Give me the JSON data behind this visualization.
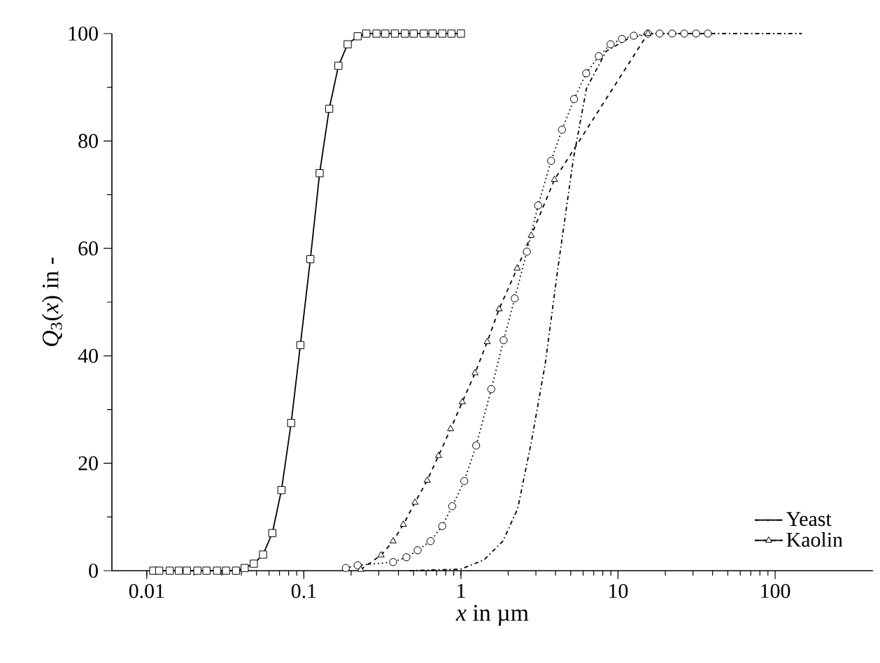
{
  "chart_data": {
    "type": "line",
    "xlabel": "*x* in µm",
    "ylabel": "*Q*$_{3}$(*x*) in -",
    "log": "x",
    "xlim": [
      0.006,
      420
    ],
    "ylim": [
      0,
      100
    ],
    "xticks": [
      0.01,
      0.1,
      1,
      10,
      100
    ],
    "yticks": [
      0,
      20,
      40,
      60,
      80,
      100
    ],
    "grid": false,
    "legend": "bottom right",
    "series": [
      {
        "color": "#000000",
        "marker": "square",
        "line_style": "solid",
        "x": [
          0.011,
          0.012,
          0.014,
          0.016,
          0.018,
          0.021,
          0.024,
          0.028,
          0.032,
          0.037,
          0.042,
          0.048,
          0.055,
          0.063,
          0.072,
          0.083,
          0.095,
          0.11,
          0.126,
          0.145,
          0.166,
          0.19,
          0.22,
          0.25,
          0.29,
          0.33,
          0.38,
          0.44,
          0.5,
          0.58,
          0.66,
          0.76,
          0.87,
          1.0
        ],
        "values": [
          0,
          0,
          0,
          0,
          0,
          0,
          0,
          0,
          0,
          0,
          0.5,
          1.3,
          3,
          7,
          15,
          27.5,
          42,
          58,
          74,
          86,
          94,
          98,
          99.5,
          100,
          100,
          100,
          100,
          100,
          100,
          100,
          100,
          100,
          100,
          100
        ]
      },
      {
        "color": "#000000",
        "marker": "circle",
        "line_style": "dotted",
        "x": [
          0.185,
          0.22,
          0.37,
          0.45,
          0.53,
          0.64,
          0.76,
          0.88,
          1.05,
          1.25,
          1.56,
          1.87,
          2.2,
          2.63,
          3.1,
          3.75,
          4.4,
          5.25,
          6.27,
          7.55,
          8.97,
          10.6,
          12.6,
          15.5,
          18.4,
          22.1,
          26.4,
          31.4,
          37.3
        ],
        "values": [
          0.5,
          1,
          1.6,
          2.5,
          3.8,
          5.5,
          8.3,
          12,
          16.7,
          23.3,
          33.8,
          42.9,
          50.7,
          59.4,
          68,
          76.3,
          82.1,
          87.8,
          92.6,
          95.8,
          98,
          99,
          99.6,
          100,
          100,
          100,
          100,
          100,
          100
        ]
      },
      {
        "name": "Yeast",
        "color": "#000000",
        "marker": "none",
        "line_style": "dashdot",
        "x": [
          0.47,
          1.0,
          1.4,
          1.85,
          2.3,
          2.8,
          3.44,
          4.2,
          5.2,
          6.3,
          8.4,
          12,
          17,
          148
        ],
        "values": [
          0,
          0.3,
          2,
          5.5,
          11.6,
          23.8,
          38.5,
          57.6,
          76.7,
          89.8,
          96.7,
          99.3,
          100,
          100
        ]
      },
      {
        "name": "Kaolin",
        "color": "#000000",
        "marker": "triangle",
        "line_style": "dashed",
        "x": [
          0.23,
          0.31,
          0.37,
          0.43,
          0.51,
          0.61,
          0.72,
          0.86,
          1.02,
          1.23,
          1.47,
          1.75,
          2.28,
          2.8,
          3.94,
          15.5
        ],
        "values": [
          0.2,
          2.9,
          5.5,
          8.6,
          12.7,
          16.8,
          21.4,
          26.4,
          31.4,
          36.8,
          42.6,
          48.7,
          56.3,
          62.4,
          72.8,
          100
        ]
      }
    ]
  }
}
